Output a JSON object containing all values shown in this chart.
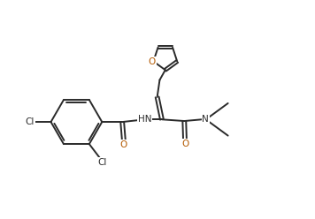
{
  "background_color": "#ffffff",
  "line_color": "#2a2a2a",
  "O_color": "#b35900",
  "N_color": "#2a2a2a",
  "Cl_color": "#2a2a2a",
  "line_width": 1.4,
  "fig_width": 3.56,
  "fig_height": 2.48,
  "dpi": 100,
  "xlim": [
    0,
    10
  ],
  "ylim": [
    0,
    7
  ]
}
